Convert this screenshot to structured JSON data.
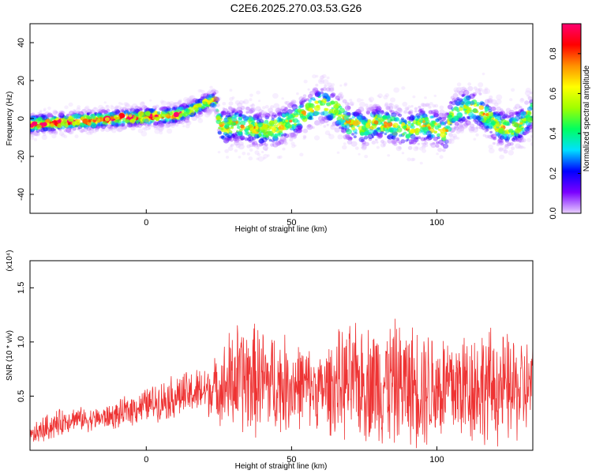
{
  "title": "C2E6.2025.270.03.53.G26",
  "chart_data": [
    {
      "type": "heatmap",
      "xlabel": "Height of straight line (km)",
      "ylabel": "Frequency (Hz)",
      "xlim": [
        -40,
        133
      ],
      "ylim": [
        -50,
        50
      ],
      "xticks": [
        0,
        50,
        100
      ],
      "yticks": [
        -40,
        -20,
        0,
        20,
        40
      ],
      "colorbar": {
        "label": "Normalized spectral amplitude",
        "range": [
          0,
          0.95
        ],
        "ticks": [
          0.0,
          0.2,
          0.4,
          0.6,
          0.8
        ],
        "colormap": [
          "#e8d0ff",
          "#7a00ff",
          "#0000ff",
          "#00e0ff",
          "#00ff60",
          "#a0ff00",
          "#ffff00",
          "#ff9000",
          "#ff0000",
          "#ff0070"
        ]
      },
      "ridge": {
        "x": [
          -40,
          -30,
          -20,
          -10,
          0,
          5,
          10,
          15,
          20,
          24,
          25,
          27,
          30,
          35,
          40,
          45,
          50,
          55,
          60,
          65,
          70,
          75,
          80,
          85,
          90,
          95,
          100,
          103,
          105,
          110,
          115,
          120,
          125,
          130,
          133
        ],
        "frequency": [
          -3,
          -2,
          -1,
          0,
          1,
          1,
          2,
          4,
          8,
          10,
          -2,
          -5,
          -3,
          -4,
          -6,
          -5,
          -1,
          3,
          8,
          5,
          -3,
          -5,
          -2,
          -4,
          -6,
          -3,
          -5,
          -8,
          2,
          6,
          4,
          -3,
          -6,
          -2,
          4
        ]
      }
    },
    {
      "type": "line",
      "xlabel": "Height of straight line (km)",
      "ylabel": "SNR (10 * v/v)",
      "y_multiplier": "(x10⁴)",
      "xlim": [
        -40,
        133
      ],
      "ylim": [
        0,
        1.75
      ],
      "xticks": [
        0,
        50,
        100
      ],
      "yticks": [
        0.5,
        1.0,
        1.5
      ],
      "ytick_labels": [
        "0.5",
        "1.0",
        "1.5"
      ],
      "color": "#ee3333",
      "series": [
        {
          "x": [
            -40,
            -35,
            -30,
            -25,
            -20,
            -15,
            -10,
            -5,
            0,
            5,
            10,
            15,
            20,
            25,
            28,
            30,
            35,
            40,
            45,
            50,
            55,
            60,
            65,
            70,
            75,
            80,
            85,
            90,
            95,
            100,
            105,
            110,
            115,
            120,
            125,
            130,
            133
          ],
          "mean": [
            0.12,
            0.2,
            0.25,
            0.3,
            0.28,
            0.3,
            0.32,
            0.38,
            0.42,
            0.46,
            0.5,
            0.52,
            0.55,
            0.58,
            0.6,
            0.65,
            0.66,
            0.64,
            0.62,
            0.6,
            0.6,
            0.55,
            0.6,
            0.62,
            0.62,
            0.63,
            0.62,
            0.6,
            0.6,
            0.58,
            0.58,
            0.6,
            0.6,
            0.58,
            0.56,
            0.56,
            0.6
          ],
          "spread": [
            0.08,
            0.12,
            0.12,
            0.1,
            0.1,
            0.1,
            0.12,
            0.14,
            0.15,
            0.17,
            0.2,
            0.2,
            0.22,
            0.28,
            0.45,
            0.5,
            0.5,
            0.48,
            0.45,
            0.4,
            0.35,
            0.32,
            0.45,
            0.5,
            0.5,
            0.55,
            0.55,
            0.52,
            0.55,
            0.52,
            0.5,
            0.52,
            0.52,
            0.5,
            0.48,
            0.45,
            0.4
          ]
        }
      ]
    }
  ]
}
